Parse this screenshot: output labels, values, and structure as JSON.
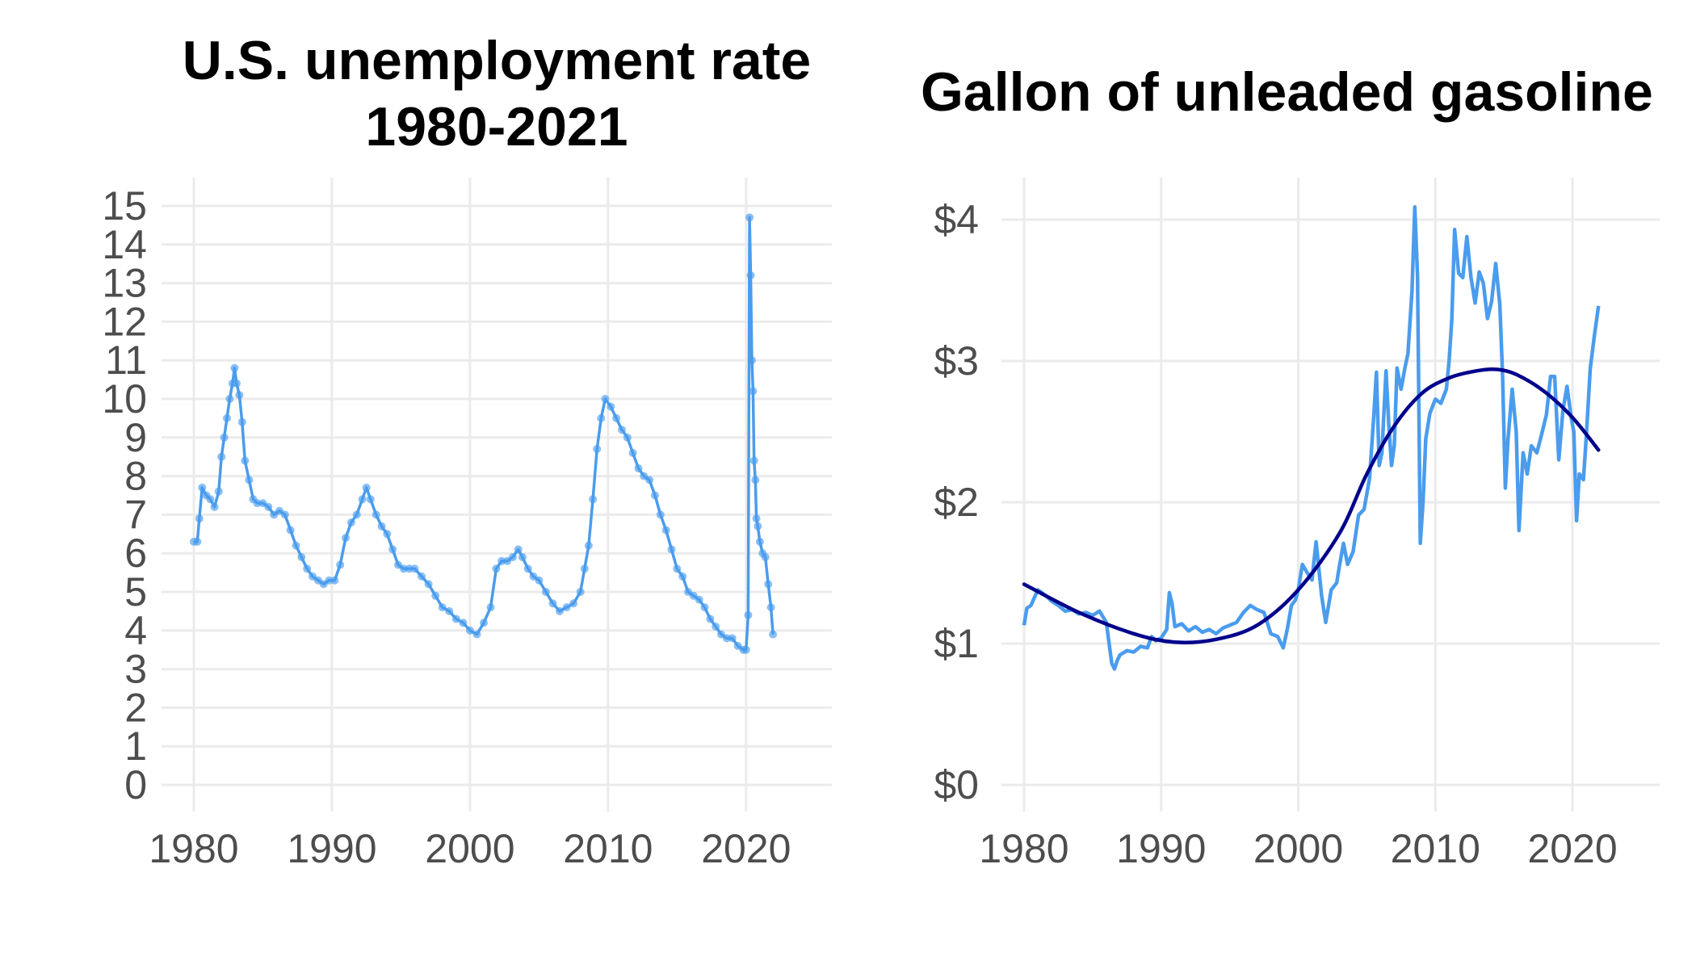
{
  "colors": {
    "series": "#4a9ced",
    "trend": "#00008b",
    "grid": "#ebebeb",
    "tick_text": "#4d4d4d",
    "title": "#000000"
  },
  "chart_data": [
    {
      "type": "line",
      "title": "U.S. unemployment rate",
      "subtitle": "1980-2021",
      "xlabel": "",
      "ylabel": "",
      "xlim": [
        1980,
        2022
      ],
      "ylim": [
        0,
        15
      ],
      "grid": true,
      "markers": true,
      "x_ticks": [
        "1980",
        "1990",
        "2000",
        "2010",
        "2020"
      ],
      "y_ticks": [
        "0",
        "1",
        "2",
        "3",
        "4",
        "5",
        "6",
        "7",
        "8",
        "9",
        "10",
        "11",
        "12",
        "13",
        "14",
        "15"
      ],
      "series": [
        {
          "x": [
            1980.0,
            1980.25,
            1980.4,
            1980.6,
            1980.9,
            1981.2,
            1981.5,
            1981.8,
            1982.0,
            1982.2,
            1982.4,
            1982.6,
            1982.8,
            1982.95,
            1983.1,
            1983.3,
            1983.5,
            1983.7,
            1984.0,
            1984.3,
            1984.6,
            1985.0,
            1985.4,
            1985.8,
            1986.2,
            1986.6,
            1987.0,
            1987.4,
            1987.8,
            1988.2,
            1988.6,
            1989.0,
            1989.4,
            1989.8,
            1990.2,
            1990.6,
            1991.0,
            1991.4,
            1991.8,
            1992.2,
            1992.5,
            1992.8,
            1993.2,
            1993.6,
            1994.0,
            1994.4,
            1994.8,
            1995.2,
            1995.6,
            1996.0,
            1996.5,
            1997.0,
            1997.5,
            1998.0,
            1998.5,
            1999.0,
            1999.5,
            2000.0,
            2000.5,
            2001.0,
            2001.5,
            2001.9,
            2002.3,
            2002.7,
            2003.1,
            2003.5,
            2003.8,
            2004.2,
            2004.6,
            2005.0,
            2005.5,
            2006.0,
            2006.5,
            2007.0,
            2007.5,
            2008.0,
            2008.3,
            2008.6,
            2008.9,
            2009.2,
            2009.5,
            2009.8,
            2010.2,
            2010.6,
            2011.0,
            2011.4,
            2011.8,
            2012.2,
            2012.6,
            2013.0,
            2013.4,
            2013.8,
            2014.2,
            2014.6,
            2015.0,
            2015.4,
            2015.8,
            2016.2,
            2016.6,
            2017.0,
            2017.4,
            2017.8,
            2018.2,
            2018.6,
            2019.0,
            2019.4,
            2019.8,
            2020.0,
            2020.15,
            2020.25,
            2020.33,
            2020.42,
            2020.5,
            2020.58,
            2020.67,
            2020.75,
            2020.85,
            2021.0,
            2021.2,
            2021.4,
            2021.6,
            2021.8,
            2021.95
          ],
          "values": [
            6.3,
            6.3,
            6.9,
            7.7,
            7.5,
            7.4,
            7.2,
            7.6,
            8.5,
            9.0,
            9.5,
            10.0,
            10.4,
            10.8,
            10.4,
            10.1,
            9.4,
            8.4,
            7.9,
            7.4,
            7.3,
            7.3,
            7.2,
            7.0,
            7.1,
            7.0,
            6.6,
            6.2,
            5.9,
            5.6,
            5.4,
            5.3,
            5.2,
            5.3,
            5.3,
            5.7,
            6.4,
            6.8,
            7.0,
            7.4,
            7.7,
            7.4,
            7.0,
            6.7,
            6.5,
            6.1,
            5.7,
            5.6,
            5.6,
            5.6,
            5.4,
            5.2,
            4.9,
            4.6,
            4.5,
            4.3,
            4.2,
            4.0,
            3.9,
            4.2,
            4.6,
            5.6,
            5.8,
            5.8,
            5.9,
            6.1,
            5.9,
            5.6,
            5.4,
            5.3,
            5.0,
            4.7,
            4.5,
            4.6,
            4.7,
            5.0,
            5.6,
            6.2,
            7.4,
            8.7,
            9.5,
            10.0,
            9.8,
            9.5,
            9.2,
            9.0,
            8.6,
            8.2,
            8.0,
            7.9,
            7.5,
            7.0,
            6.6,
            6.1,
            5.6,
            5.4,
            5.0,
            4.9,
            4.8,
            4.6,
            4.3,
            4.1,
            3.9,
            3.8,
            3.8,
            3.6,
            3.5,
            3.5,
            4.4,
            14.7,
            13.2,
            11.0,
            10.2,
            8.4,
            7.9,
            6.9,
            6.7,
            6.3,
            6.0,
            5.9,
            5.2,
            4.6,
            3.9
          ],
          "name": ""
        }
      ]
    },
    {
      "type": "line",
      "title": "Gallon of unleaded gasoline",
      "xlabel": "",
      "ylabel": "",
      "xlim": [
        1980,
        2022
      ],
      "ylim": [
        0,
        4.1
      ],
      "grid": true,
      "x_ticks": [
        "1980",
        "1990",
        "2000",
        "2010",
        "2020"
      ],
      "y_ticks": [
        "$0",
        "$1",
        "$2",
        "$3",
        "$4"
      ],
      "y_tick_values": [
        0,
        1,
        2,
        3,
        4
      ],
      "series": [
        {
          "name": "",
          "x": [
            1980.0,
            1980.2,
            1980.5,
            1981.0,
            1981.3,
            1981.7,
            1982.0,
            1982.5,
            1983.0,
            1983.5,
            1984.0,
            1984.5,
            1985.0,
            1985.5,
            1986.0,
            1986.2,
            1986.4,
            1986.6,
            1986.8,
            1987.0,
            1987.5,
            1988.0,
            1988.5,
            1989.0,
            1989.3,
            1989.6,
            1990.0,
            1990.4,
            1990.6,
            1990.8,
            1991.0,
            1991.5,
            1992.0,
            1992.5,
            1993.0,
            1993.5,
            1994.0,
            1994.5,
            1995.0,
            1995.5,
            1996.0,
            1996.5,
            1997.0,
            1997.5,
            1998.0,
            1998.5,
            1998.9,
            1999.2,
            1999.5,
            1999.8,
            2000.0,
            2000.3,
            2000.6,
            2001.0,
            2001.3,
            2001.7,
            2002.0,
            2002.4,
            2002.8,
            2003.0,
            2003.3,
            2003.6,
            2004.0,
            2004.4,
            2004.8,
            2005.2,
            2005.5,
            2005.7,
            2005.9,
            2006.1,
            2006.4,
            2006.6,
            2006.8,
            2007.0,
            2007.2,
            2007.5,
            2007.8,
            2008.0,
            2008.3,
            2008.5,
            2008.7,
            2008.9,
            2009.1,
            2009.3,
            2009.6,
            2010.0,
            2010.4,
            2010.8,
            2011.0,
            2011.2,
            2011.4,
            2011.7,
            2012.0,
            2012.3,
            2012.6,
            2012.9,
            2013.2,
            2013.5,
            2013.8,
            2014.1,
            2014.4,
            2014.7,
            2014.9,
            2015.1,
            2015.3,
            2015.6,
            2015.9,
            2016.1,
            2016.4,
            2016.7,
            2017.0,
            2017.4,
            2017.8,
            2018.1,
            2018.4,
            2018.7,
            2019.0,
            2019.3,
            2019.6,
            2019.9,
            2020.1,
            2020.3,
            2020.5,
            2020.8,
            2021.0,
            2021.3,
            2021.6,
            2021.9
          ],
          "values": [
            1.13,
            1.25,
            1.27,
            1.38,
            1.36,
            1.33,
            1.3,
            1.27,
            1.23,
            1.24,
            1.21,
            1.22,
            1.2,
            1.23,
            1.15,
            1.0,
            0.86,
            0.82,
            0.88,
            0.92,
            0.95,
            0.94,
            0.98,
            0.97,
            1.05,
            1.02,
            1.04,
            1.1,
            1.36,
            1.28,
            1.12,
            1.14,
            1.09,
            1.12,
            1.08,
            1.1,
            1.07,
            1.11,
            1.13,
            1.15,
            1.22,
            1.27,
            1.24,
            1.22,
            1.07,
            1.05,
            0.97,
            1.1,
            1.27,
            1.31,
            1.38,
            1.56,
            1.51,
            1.45,
            1.72,
            1.34,
            1.15,
            1.38,
            1.43,
            1.55,
            1.71,
            1.56,
            1.65,
            1.91,
            1.95,
            2.17,
            2.6,
            2.92,
            2.26,
            2.35,
            2.93,
            2.55,
            2.26,
            2.4,
            2.95,
            2.8,
            2.96,
            3.05,
            3.5,
            4.09,
            3.6,
            1.71,
            2.0,
            2.45,
            2.63,
            2.73,
            2.7,
            2.8,
            3.0,
            3.3,
            3.93,
            3.62,
            3.59,
            3.88,
            3.59,
            3.41,
            3.63,
            3.55,
            3.3,
            3.42,
            3.69,
            3.4,
            2.9,
            2.1,
            2.45,
            2.8,
            2.5,
            1.8,
            2.35,
            2.2,
            2.4,
            2.35,
            2.5,
            2.62,
            2.89,
            2.89,
            2.3,
            2.65,
            2.82,
            2.6,
            2.5,
            1.87,
            2.2,
            2.16,
            2.45,
            2.95,
            3.18,
            3.39
          ],
          "trend": {
            "x": [
              1980,
              1984,
              1988,
              1991,
              1994,
              1997,
              2000,
              2003,
              2005,
              2007,
              2009,
              2011,
              2013,
              2014.5,
              2016,
              2018,
              2020,
              2021.9
            ],
            "values": [
              1.42,
              1.22,
              1.07,
              1.01,
              1.03,
              1.13,
              1.38,
              1.78,
              2.2,
              2.54,
              2.77,
              2.88,
              2.93,
              2.94,
              2.9,
              2.78,
              2.6,
              2.37
            ]
          }
        }
      ]
    }
  ]
}
